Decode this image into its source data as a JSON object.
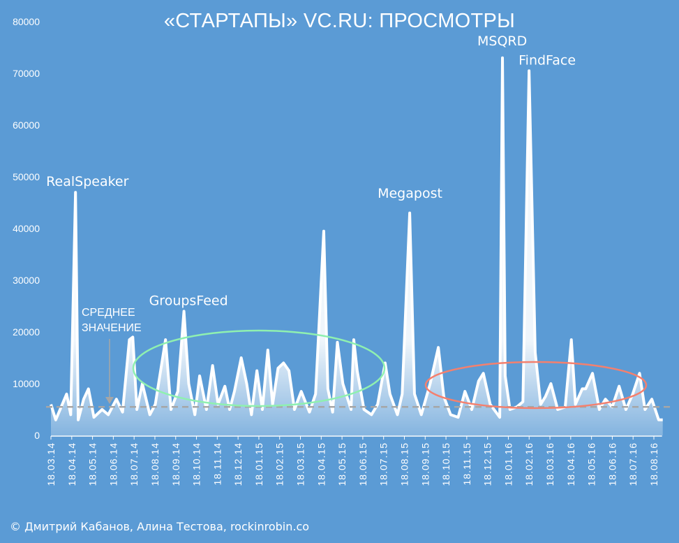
{
  "chart_data": {
    "type": "line",
    "title": "«СТАРТАПЫ» VC.RU: ПРОСМОТРЫ",
    "xlabel": "",
    "ylabel": "",
    "ylim": [
      0,
      80000
    ],
    "yticks": [
      0,
      10000,
      20000,
      30000,
      40000,
      50000,
      60000,
      70000,
      80000
    ],
    "xlim": [
      "2014-03-18",
      "2016-09-02"
    ],
    "xtick_labels": [
      "18.03.14",
      "18.04.14",
      "18.05.14",
      "18.06.14",
      "18.07.14",
      "18.08.14",
      "18.09.14",
      "18.10.14",
      "18.11.14",
      "18.12.14",
      "18.01.15",
      "18.02.15",
      "18.03.15",
      "18.04.15",
      "18.05.15",
      "18.06.15",
      "18.07.15",
      "18.08.15",
      "18.09.15",
      "18.10.15",
      "18.11.15",
      "18.12.15",
      "18.01.16",
      "18.02.16",
      "18.03.16",
      "18.04.16",
      "18.05.16",
      "18.06.16",
      "18.07.16",
      "18.08.16"
    ],
    "grid": false,
    "colors": {
      "background": "#5b9bd5",
      "line": "#ffffff",
      "mean_line": "#a6a6a6",
      "ellipse_green": "#8ff0b0",
      "ellipse_red": "#f4806e"
    },
    "mean": {
      "value": 5500,
      "label_lines": [
        "СРЕДНЕЕ",
        "ЗНАЧЕНИЕ"
      ]
    },
    "annotations": [
      {
        "text": "RealSpeaker",
        "x": "2014-04-23",
        "y": 47000
      },
      {
        "text": "GroupsFeed",
        "x": "2014-09-29",
        "y": 24000
      },
      {
        "text": "Megapost",
        "x": "2015-08-26",
        "y": 43000
      },
      {
        "text": "MSQRD",
        "x": "2016-01-09",
        "y": 73000
      },
      {
        "text": "FindFace",
        "x": "2016-02-17",
        "y": 70500
      }
    ],
    "points": [
      [
        "2014-03-18",
        6000
      ],
      [
        "2014-03-25",
        3000
      ],
      [
        "2014-04-02",
        5500
      ],
      [
        "2014-04-10",
        8000
      ],
      [
        "2014-04-16",
        4000
      ],
      [
        "2014-04-23",
        47000
      ],
      [
        "2014-04-27",
        3000
      ],
      [
        "2014-05-05",
        7000
      ],
      [
        "2014-05-12",
        9000
      ],
      [
        "2014-05-20",
        3500
      ],
      [
        "2014-06-01",
        5000
      ],
      [
        "2014-06-10",
        4000
      ],
      [
        "2014-06-22",
        7000
      ],
      [
        "2014-07-01",
        4500
      ],
      [
        "2014-07-11",
        18500
      ],
      [
        "2014-07-16",
        19000
      ],
      [
        "2014-07-22",
        5000
      ],
      [
        "2014-07-30",
        10000
      ],
      [
        "2014-08-10",
        4000
      ],
      [
        "2014-08-18",
        6000
      ],
      [
        "2014-09-02",
        18500
      ],
      [
        "2014-09-10",
        5000
      ],
      [
        "2014-09-20",
        8500
      ],
      [
        "2014-09-29",
        24000
      ],
      [
        "2014-10-06",
        10000
      ],
      [
        "2014-10-15",
        4000
      ],
      [
        "2014-10-22",
        11500
      ],
      [
        "2014-11-01",
        5000
      ],
      [
        "2014-11-10",
        13500
      ],
      [
        "2014-11-18",
        6000
      ],
      [
        "2014-11-28",
        9500
      ],
      [
        "2014-12-05",
        5000
      ],
      [
        "2014-12-12",
        8500
      ],
      [
        "2014-12-22",
        15000
      ],
      [
        "2014-12-30",
        10000
      ],
      [
        "2015-01-06",
        4000
      ],
      [
        "2015-01-14",
        12500
      ],
      [
        "2015-01-22",
        5000
      ],
      [
        "2015-01-30",
        16500
      ],
      [
        "2015-02-06",
        6000
      ],
      [
        "2015-02-14",
        13000
      ],
      [
        "2015-02-22",
        14000
      ],
      [
        "2015-03-02",
        12500
      ],
      [
        "2015-03-10",
        5000
      ],
      [
        "2015-03-20",
        8500
      ],
      [
        "2015-04-01",
        4500
      ],
      [
        "2015-04-10",
        8000
      ],
      [
        "2015-04-22",
        39500
      ],
      [
        "2015-04-28",
        9000
      ],
      [
        "2015-05-05",
        4500
      ],
      [
        "2015-05-12",
        18000
      ],
      [
        "2015-05-20",
        10000
      ],
      [
        "2015-06-01",
        5000
      ],
      [
        "2015-06-05",
        18500
      ],
      [
        "2015-06-10",
        12500
      ],
      [
        "2015-06-20",
        5000
      ],
      [
        "2015-07-01",
        4000
      ],
      [
        "2015-07-10",
        6000
      ],
      [
        "2015-07-21",
        14000
      ],
      [
        "2015-07-28",
        8000
      ],
      [
        "2015-08-08",
        4000
      ],
      [
        "2015-08-15",
        8000
      ],
      [
        "2015-08-26",
        43000
      ],
      [
        "2015-09-02",
        8000
      ],
      [
        "2015-09-12",
        4000
      ],
      [
        "2015-09-25",
        10000
      ],
      [
        "2015-10-07",
        17000
      ],
      [
        "2015-10-15",
        7500
      ],
      [
        "2015-10-25",
        4000
      ],
      [
        "2015-11-05",
        3500
      ],
      [
        "2015-11-15",
        8500
      ],
      [
        "2015-11-25",
        5000
      ],
      [
        "2015-12-05",
        10500
      ],
      [
        "2015-12-12",
        12000
      ],
      [
        "2015-12-22",
        6000
      ],
      [
        "2016-01-05",
        3500
      ],
      [
        "2016-01-09",
        73000
      ],
      [
        "2016-01-13",
        11500
      ],
      [
        "2016-01-20",
        5000
      ],
      [
        "2016-01-30",
        5500
      ],
      [
        "2016-02-08",
        6500
      ],
      [
        "2016-02-17",
        70500
      ],
      [
        "2016-02-26",
        16000
      ],
      [
        "2016-03-05",
        6000
      ],
      [
        "2016-03-12",
        7500
      ],
      [
        "2016-03-20",
        10000
      ],
      [
        "2016-03-30",
        5000
      ],
      [
        "2016-04-10",
        5500
      ],
      [
        "2016-04-19",
        18500
      ],
      [
        "2016-04-25",
        6000
      ],
      [
        "2016-05-05",
        9000
      ],
      [
        "2016-05-10",
        9000
      ],
      [
        "2016-05-20",
        12000
      ],
      [
        "2016-05-30",
        5000
      ],
      [
        "2016-06-08",
        7000
      ],
      [
        "2016-06-18",
        5500
      ],
      [
        "2016-06-28",
        9500
      ],
      [
        "2016-07-08",
        5000
      ],
      [
        "2016-07-18",
        8000
      ],
      [
        "2016-07-28",
        12000
      ],
      [
        "2016-08-05",
        5000
      ],
      [
        "2016-08-15",
        7000
      ],
      [
        "2016-08-25",
        3000
      ],
      [
        "2016-08-31",
        3000
      ]
    ]
  },
  "credit": "© Дмитрий Кабанов, Алина Тестова, rockinrobin.co"
}
